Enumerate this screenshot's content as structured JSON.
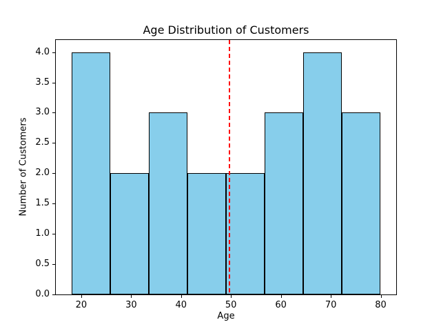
{
  "figure": {
    "title": "Age Distribution of Customers",
    "xlabel": "Age",
    "ylabel": "Number of Customers"
  },
  "chart_data": {
    "type": "bar",
    "subtype": "histogram",
    "title": "Age Distribution of Customers",
    "xlabel": "Age",
    "ylabel": "Number of Customers",
    "bin_edges": [
      18,
      25.75,
      33.5,
      41.25,
      49,
      56.75,
      64.5,
      72.25,
      80
    ],
    "counts": [
      4,
      2,
      3,
      2,
      2,
      3,
      4,
      3
    ],
    "xlim": [
      14.9,
      83.1
    ],
    "ylim": [
      0,
      4.2
    ],
    "xticks": [
      20,
      30,
      40,
      50,
      60,
      70,
      80
    ],
    "xtick_labels": [
      "20",
      "30",
      "40",
      "50",
      "60",
      "70",
      "80"
    ],
    "yticks": [
      0.0,
      0.5,
      1.0,
      1.5,
      2.0,
      2.5,
      3.0,
      3.5,
      4.0
    ],
    "ytick_labels": [
      "0.0",
      "0.5",
      "1.0",
      "1.5",
      "2.0",
      "2.5",
      "3.0",
      "3.5",
      "4.0"
    ],
    "grid": false,
    "legend": null,
    "bar_fill_color": "#87ceeb",
    "bar_edge_color": "#000000",
    "background_color": "#ffffff",
    "reference_line": {
      "orientation": "vertical",
      "x": 49.7,
      "color": "#ff0000",
      "style": "dashed"
    }
  }
}
